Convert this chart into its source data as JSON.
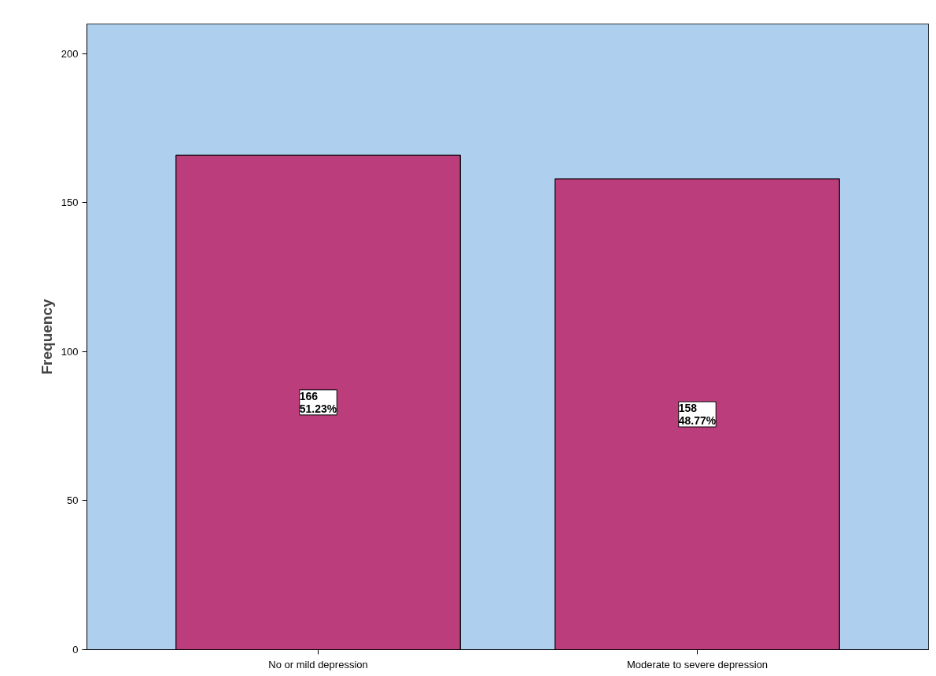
{
  "chart_data": {
    "type": "bar",
    "ylabel": "Frequency",
    "categories": [
      "No or mild depression",
      "Moderate to severe depression"
    ],
    "values": [
      166,
      158
    ],
    "value_labels": [
      "166\n51.23%",
      "158\n48.77%"
    ],
    "color": "#bb3d7c",
    "bands": [
      {
        "axis": "y",
        "from": 0,
        "to": 210,
        "color": "#aecfed"
      }
    ],
    "ylim": [
      0,
      210
    ],
    "yticks": [
      0,
      50,
      100,
      150,
      200
    ],
    "grid": false
  }
}
